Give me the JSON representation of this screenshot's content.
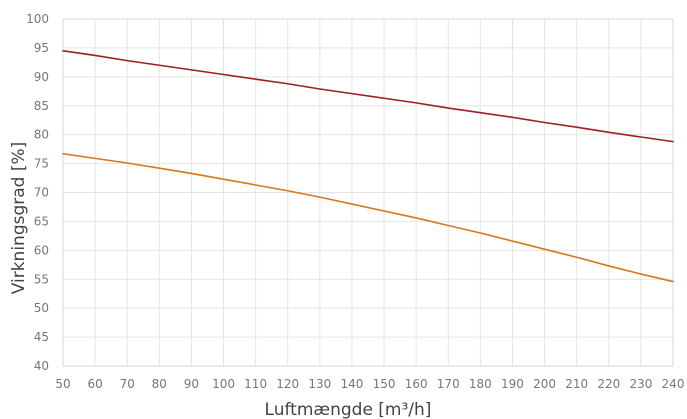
{
  "chart_data": {
    "type": "line",
    "title": "",
    "xlabel": "Luftmængde [m³/h]",
    "ylabel": "Virkningsgrad [%]",
    "xlim": [
      50,
      240
    ],
    "ylim": [
      40,
      100
    ],
    "x_ticks": [
      "50",
      "60",
      "70",
      "80",
      "90",
      "100",
      "110",
      "120",
      "130",
      "140",
      "150",
      "160",
      "170",
      "180",
      "190",
      "200",
      "210",
      "220",
      "230",
      "240"
    ],
    "y_ticks": [
      "40",
      "45",
      "50",
      "55",
      "60",
      "65",
      "70",
      "75",
      "80",
      "85",
      "90",
      "95",
      "100"
    ],
    "grid": true,
    "legend": "none",
    "x": [
      50,
      60,
      70,
      80,
      90,
      100,
      110,
      120,
      130,
      140,
      150,
      160,
      170,
      180,
      190,
      200,
      210,
      220,
      230,
      240
    ],
    "series": [
      {
        "color": "#a01e23",
        "values": [
          94.5,
          93.7,
          92.8,
          92.0,
          91.2,
          90.4,
          89.6,
          88.8,
          87.9,
          87.1,
          86.3,
          85.5,
          84.6,
          83.8,
          83.0,
          82.1,
          81.3,
          80.4,
          79.6,
          78.8
        ]
      },
      {
        "color": "#d9761a",
        "values": [
          76.7,
          75.9,
          75.1,
          74.2,
          73.3,
          72.3,
          71.3,
          70.3,
          69.2,
          68.0,
          66.8,
          65.6,
          64.3,
          63.0,
          61.6,
          60.2,
          58.8,
          57.3,
          55.9,
          54.6
        ]
      }
    ]
  }
}
